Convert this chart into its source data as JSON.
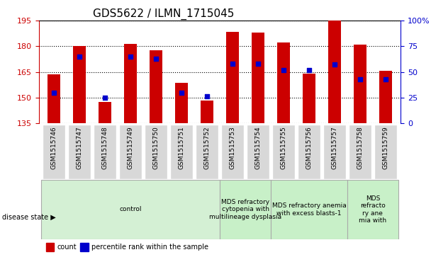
{
  "title": "GDS5622 / ILMN_1715045",
  "samples": [
    "GSM1515746",
    "GSM1515747",
    "GSM1515748",
    "GSM1515749",
    "GSM1515750",
    "GSM1515751",
    "GSM1515752",
    "GSM1515753",
    "GSM1515754",
    "GSM1515755",
    "GSM1515756",
    "GSM1515757",
    "GSM1515758",
    "GSM1515759"
  ],
  "counts": [
    163.5,
    180.0,
    147.5,
    181.5,
    177.5,
    158.5,
    148.5,
    188.5,
    188.0,
    182.0,
    164.0,
    199.0,
    181.0,
    165.5
  ],
  "percentiles": [
    30,
    65,
    25,
    65,
    63,
    30,
    26,
    58,
    58,
    52,
    52,
    57,
    43,
    43
  ],
  "ymin": 135,
  "ymax": 195,
  "yticks": [
    135,
    150,
    165,
    180,
    195
  ],
  "bar_color": "#cc0000",
  "dot_color": "#0000cc",
  "background_color": "#ffffff",
  "title_fontsize": 11,
  "groups": [
    {
      "label": "control",
      "start": 0,
      "end": 7,
      "color": "#d4f0d4"
    },
    {
      "label": "MDS refractory\ncytopenia with\nmultilineage dysplasia",
      "start": 7,
      "end": 9,
      "color": "#c8f0c8"
    },
    {
      "label": "MDS refractory anemia\nwith excess blasts-1",
      "start": 9,
      "end": 12,
      "color": "#c8f0c8"
    },
    {
      "label": "MDS\nrefracto\nry ane\nmia with",
      "start": 12,
      "end": 14,
      "color": "#c8f0c8"
    }
  ],
  "legend_items": [
    {
      "label": "count",
      "color": "#cc0000"
    },
    {
      "label": "percentile rank within the sample",
      "color": "#0000cc"
    }
  ],
  "disease_state_label": "disease state"
}
